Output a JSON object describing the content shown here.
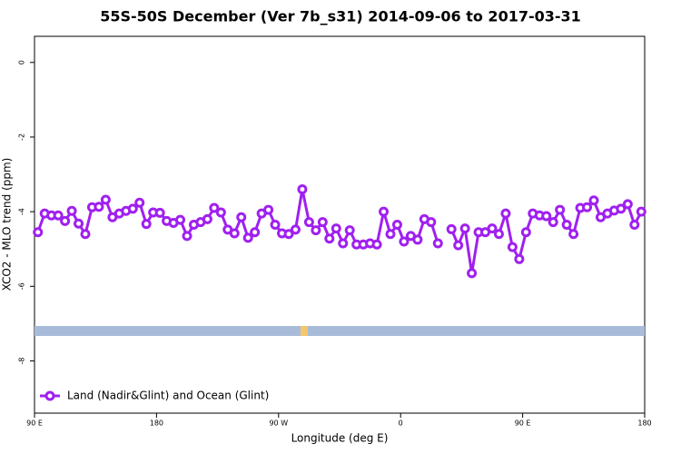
{
  "chart_data": {
    "type": "line",
    "title": "55S-50S December (Ver 7b_s31)   2014-09-06 to 2017-03-31",
    "x_label": "Longitude (deg E)",
    "y_label": "XCO2 - MLO trend (ppm)",
    "xlim": [
      90,
      540
    ],
    "xticks": [
      {
        "value": 90,
        "label": "90 E"
      },
      180,
      {
        "value": 270,
        "label": "90 W"
      },
      {
        "value": 360,
        "label": "0"
      },
      {
        "value": 450,
        "label": "90 E"
      },
      {
        "value": 540,
        "label": "180"
      }
    ],
    "ylim": [
      -9.4,
      0.7
    ],
    "yticks": [
      0,
      -2,
      -4,
      -6,
      -8
    ],
    "legend": "bottom-left",
    "x": [
      92.5,
      97.5,
      102.5,
      107.5,
      112.5,
      117.5,
      122.5,
      127.5,
      132.5,
      137.5,
      142.5,
      147.5,
      152.5,
      157.5,
      162.5,
      167.5,
      172.5,
      177.5,
      182.5,
      187.5,
      192.5,
      197.5,
      202.5,
      207.5,
      212.5,
      217.5,
      222.5,
      227.5,
      232.5,
      237.5,
      242.5,
      247.5,
      252.5,
      257.5,
      262.5,
      267.5,
      272.5,
      277.5,
      282.5,
      287.5,
      292.5,
      297.5,
      302.5,
      307.5,
      312.5,
      317.5,
      322.5,
      327.5,
      332.5,
      337.5,
      342.5,
      347.5,
      352.5,
      357.5,
      362.5,
      367.5,
      372.5,
      377.5,
      382.5,
      387.5,
      392.5,
      397.5,
      402.5,
      407.5,
      412.5,
      417.5,
      422.5,
      427.5,
      432.5,
      437.5,
      442.5,
      447.5,
      452.5,
      457.5,
      462.5,
      467.5,
      472.5,
      477.5,
      482.5,
      487.5,
      492.5,
      497.5,
      502.5,
      507.5,
      512.5,
      517.5,
      522.5,
      527.5,
      532.5,
      537.5
    ],
    "series": [
      {
        "name": "Land (Nadir&Glint) and Ocean (Glint)",
        "color": "#a020f0",
        "values": [
          -4.55,
          -4.05,
          -4.1,
          -4.1,
          -4.25,
          -3.98,
          -4.32,
          -4.6,
          -3.88,
          -3.87,
          -3.68,
          -4.15,
          -4.05,
          -3.98,
          -3.92,
          -3.76,
          -4.33,
          -4.02,
          -4.03,
          -4.25,
          -4.3,
          -4.22,
          -4.65,
          -4.35,
          -4.28,
          -4.2,
          -3.9,
          -4.02,
          -4.48,
          -4.58,
          -4.15,
          -4.7,
          -4.55,
          -4.05,
          -3.95,
          -4.35,
          -4.58,
          -4.6,
          -4.48,
          -3.4,
          -4.28,
          -4.5,
          -4.28,
          -4.72,
          -4.45,
          -4.85,
          -4.5,
          -4.88,
          -4.88,
          -4.85,
          -4.88,
          -4.0,
          -4.6,
          -4.35,
          -4.8,
          -4.65,
          -4.75,
          -4.2,
          -4.28,
          -4.85,
          null,
          -4.47,
          -4.9,
          -4.45,
          -5.65,
          -4.55,
          -4.55,
          -4.45,
          -4.6,
          -4.05,
          -4.95,
          -5.27,
          -4.55,
          -4.05,
          -4.1,
          -4.12,
          -4.28,
          -3.95,
          -4.35,
          -4.6,
          -3.9,
          -3.88,
          -3.7,
          -4.15,
          -4.05,
          -3.97,
          -3.92,
          -3.8,
          -4.35,
          -4.0
        ]
      }
    ]
  }
}
